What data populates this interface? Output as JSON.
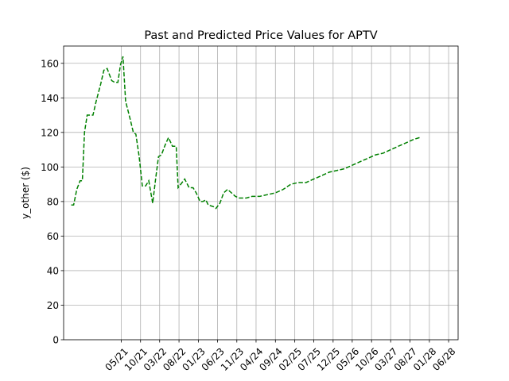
{
  "chart_data": {
    "type": "line",
    "title": "Past and Predicted Price Values for APTV",
    "xlabel": "",
    "ylabel": "y_other ($)",
    "ylim": [
      0,
      170
    ],
    "xlim": [
      "2020-02-01",
      "2028-08-15"
    ],
    "grid": true,
    "y_ticks": [
      0,
      20,
      40,
      60,
      80,
      100,
      120,
      140,
      160
    ],
    "x_ticks": [
      {
        "date": "2021-05-01",
        "label": "05/21"
      },
      {
        "date": "2021-10-01",
        "label": "10/21"
      },
      {
        "date": "2022-03-01",
        "label": "03/22"
      },
      {
        "date": "2022-08-01",
        "label": "08/22"
      },
      {
        "date": "2023-01-01",
        "label": "01/23"
      },
      {
        "date": "2023-06-01",
        "label": "06/23"
      },
      {
        "date": "2023-11-01",
        "label": "11/23"
      },
      {
        "date": "2024-04-01",
        "label": "04/24"
      },
      {
        "date": "2024-09-01",
        "label": "09/24"
      },
      {
        "date": "2025-02-01",
        "label": "02/25"
      },
      {
        "date": "2025-07-01",
        "label": "07/25"
      },
      {
        "date": "2025-12-01",
        "label": "12/25"
      },
      {
        "date": "2026-05-01",
        "label": "05/26"
      },
      {
        "date": "2026-10-01",
        "label": "10/26"
      },
      {
        "date": "2027-03-01",
        "label": "03/27"
      },
      {
        "date": "2027-08-01",
        "label": "08/27"
      },
      {
        "date": "2028-01-01",
        "label": "01/28"
      },
      {
        "date": "2028-06-01",
        "label": "06/28"
      }
    ],
    "series": [
      {
        "color": "#008000",
        "style": "dashed",
        "points": [
          [
            "2020-04-01",
            78
          ],
          [
            "2020-04-20",
            78
          ],
          [
            "2020-05-15",
            87
          ],
          [
            "2020-06-10",
            92
          ],
          [
            "2020-06-28",
            92
          ],
          [
            "2020-07-15",
            120
          ],
          [
            "2020-08-05",
            130
          ],
          [
            "2020-09-01",
            130
          ],
          [
            "2020-09-20",
            130
          ],
          [
            "2020-10-15",
            138
          ],
          [
            "2020-11-20",
            148
          ],
          [
            "2020-12-15",
            156
          ],
          [
            "2021-01-10",
            157
          ],
          [
            "2021-02-15",
            150
          ],
          [
            "2021-03-10",
            149
          ],
          [
            "2021-04-05",
            149
          ],
          [
            "2021-04-25",
            159
          ],
          [
            "2021-05-15",
            164
          ],
          [
            "2021-06-05",
            138
          ],
          [
            "2021-07-10",
            128
          ],
          [
            "2021-08-05",
            120
          ],
          [
            "2021-08-25",
            119
          ],
          [
            "2021-09-20",
            106
          ],
          [
            "2021-10-15",
            89
          ],
          [
            "2021-11-10",
            89
          ],
          [
            "2021-12-05",
            92
          ],
          [
            "2022-01-05",
            79
          ],
          [
            "2022-01-28",
            93
          ],
          [
            "2022-02-20",
            106
          ],
          [
            "2022-03-15",
            107
          ],
          [
            "2022-04-15",
            113
          ],
          [
            "2022-05-10",
            117
          ],
          [
            "2022-06-10",
            112
          ],
          [
            "2022-07-10",
            112
          ],
          [
            "2022-07-25",
            88
          ],
          [
            "2022-08-15",
            90
          ],
          [
            "2022-09-15",
            93
          ],
          [
            "2022-10-20",
            88
          ],
          [
            "2022-11-20",
            88
          ],
          [
            "2022-12-15",
            85
          ],
          [
            "2023-01-15",
            80
          ],
          [
            "2023-02-05",
            80
          ],
          [
            "2023-03-01",
            81
          ],
          [
            "2023-03-20",
            78
          ],
          [
            "2023-05-01",
            77
          ],
          [
            "2023-05-20",
            76
          ],
          [
            "2023-06-20",
            79
          ],
          [
            "2023-07-20",
            85
          ],
          [
            "2023-08-20",
            87
          ],
          [
            "2023-09-20",
            85
          ],
          [
            "2023-10-20",
            83
          ],
          [
            "2023-11-20",
            82
          ],
          [
            "2024-01-15",
            82
          ],
          [
            "2024-03-01",
            83
          ],
          [
            "2024-05-01",
            83
          ],
          [
            "2024-07-01",
            84
          ],
          [
            "2024-09-01",
            85
          ],
          [
            "2024-11-01",
            87
          ],
          [
            "2025-01-01",
            90
          ],
          [
            "2025-03-01",
            91
          ],
          [
            "2025-05-01",
            91
          ],
          [
            "2025-07-01",
            93
          ],
          [
            "2025-09-01",
            95
          ],
          [
            "2025-11-01",
            97
          ],
          [
            "2026-01-01",
            98
          ],
          [
            "2026-03-01",
            99
          ],
          [
            "2026-05-01",
            101
          ],
          [
            "2026-07-01",
            103
          ],
          [
            "2026-09-01",
            105
          ],
          [
            "2026-11-01",
            107
          ],
          [
            "2027-01-01",
            108
          ],
          [
            "2027-03-01",
            110
          ],
          [
            "2027-05-01",
            112
          ],
          [
            "2027-07-01",
            114
          ],
          [
            "2027-09-01",
            116
          ],
          [
            "2027-10-15",
            117
          ]
        ]
      }
    ]
  }
}
